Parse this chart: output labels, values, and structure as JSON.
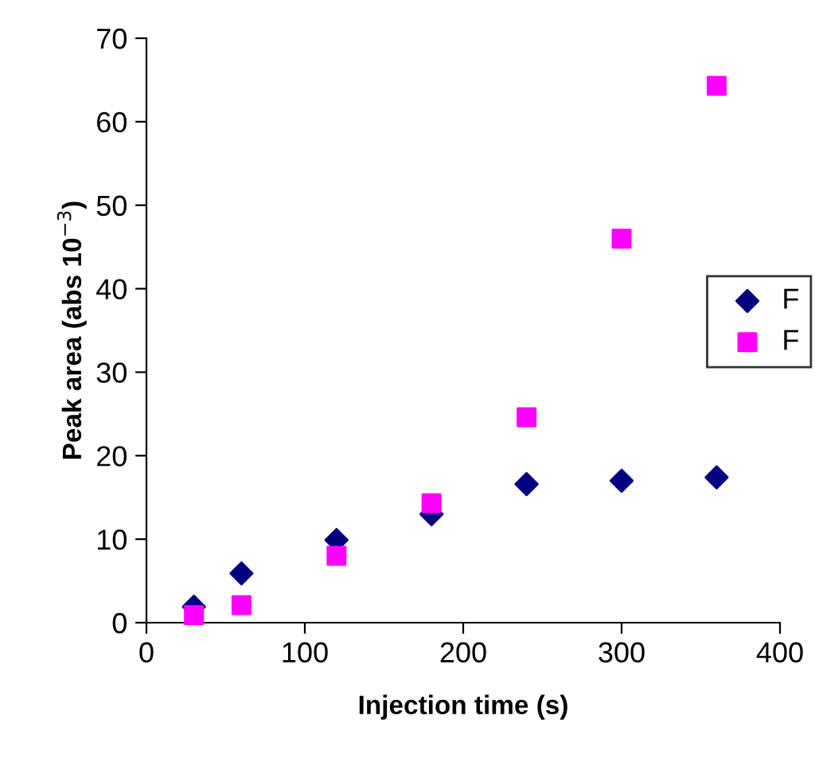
{
  "chart_data": {
    "type": "scatter",
    "xlabel": "Injection time (s)",
    "ylabel": "Peak area (abs 10$^{−3}$)",
    "x": [
      30,
      60,
      120,
      180,
      240,
      300,
      360
    ],
    "series": [
      {
        "name": "F",
        "color": "#000080",
        "marker": "diamond",
        "values": [
          1.9,
          5.9,
          9.9,
          13.0,
          16.6,
          17.0,
          17.4
        ]
      },
      {
        "name": "F",
        "color": "#ff00ff",
        "marker": "square",
        "values": [
          0.9,
          2.1,
          8.0,
          14.3,
          24.6,
          46.0,
          64.3
        ]
      }
    ],
    "xlim": [
      0,
      400
    ],
    "xticks": [
      0,
      100,
      200,
      300,
      400
    ],
    "ylim": [
      0,
      70
    ],
    "yticks": [
      0,
      10,
      20,
      30,
      40,
      50,
      60,
      70
    ],
    "grid": false,
    "legend": "right"
  }
}
